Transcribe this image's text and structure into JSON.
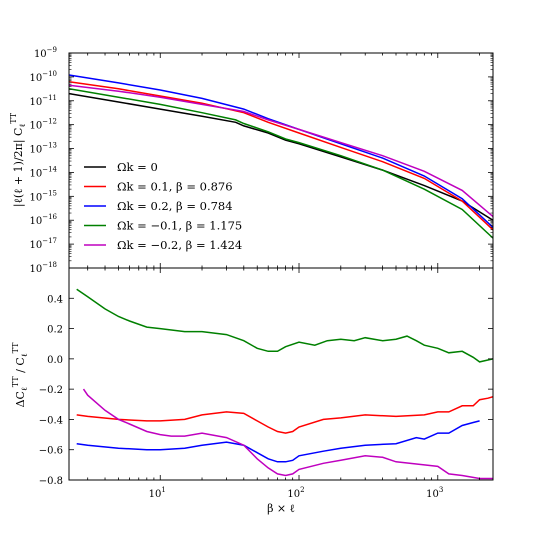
{
  "chart_data": [
    {
      "type": "line",
      "title": "",
      "xlabel": "",
      "ylabel": "|ℓ(ℓ + 1)/2π| C",
      "ylabel_sub": "ℓ",
      "ylabel_sup": "TT",
      "xscale": "log",
      "yscale": "log",
      "xlim": [
        2.2,
        2500
      ],
      "ylim_exp": [
        -18,
        -9
      ],
      "y_tick_exponents": [
        -18,
        -17,
        -16,
        -15,
        -14,
        -13,
        -12,
        -11,
        -10,
        -9
      ],
      "y_tick_base": "10",
      "legend_position": "lower-left",
      "series": [
        {
          "name": "Ωk = 0",
          "color": "#000000",
          "x": [
            2.2,
            5,
            10,
            20,
            35,
            40,
            60,
            80,
            100,
            200,
            400,
            800,
            1500,
            2500
          ],
          "log10y": [
            -10.7,
            -11.05,
            -11.35,
            -11.65,
            -11.9,
            -12.05,
            -12.35,
            -12.65,
            -12.8,
            -13.35,
            -13.9,
            -14.55,
            -15.2,
            -16.0
          ]
        },
        {
          "name": "Ωk = 0.1, β = 0.876",
          "color": "#ff0000",
          "x": [
            2.2,
            5,
            10,
            20,
            40,
            60,
            100,
            200,
            400,
            800,
            1500,
            2500
          ],
          "log10y": [
            -10.2,
            -10.5,
            -10.8,
            -11.1,
            -11.5,
            -11.9,
            -12.35,
            -12.95,
            -13.55,
            -14.25,
            -15.2,
            -16.4
          ]
        },
        {
          "name": "Ωk = 0.2, β = 0.784",
          "color": "#0000ff",
          "x": [
            2.2,
            5,
            10,
            20,
            40,
            60,
            100,
            200,
            400,
            800,
            1500,
            2500
          ],
          "log10y": [
            -9.92,
            -10.25,
            -10.55,
            -10.9,
            -11.35,
            -11.75,
            -12.2,
            -12.8,
            -13.4,
            -14.15,
            -15.1,
            -16.3
          ]
        },
        {
          "name": "Ωk = −0.1, β = 1.175",
          "color": "#008000",
          "x": [
            2.2,
            5,
            10,
            20,
            35,
            40,
            60,
            80,
            100,
            200,
            400,
            800,
            1500,
            2500
          ],
          "log10y": [
            -10.5,
            -10.85,
            -11.15,
            -11.5,
            -11.8,
            -11.95,
            -12.3,
            -12.6,
            -12.75,
            -13.3,
            -13.9,
            -14.7,
            -15.55,
            -16.75
          ]
        },
        {
          "name": "Ωk = −0.2, β = 1.424",
          "color": "#bf00bf",
          "x": [
            2.2,
            5,
            10,
            20,
            40,
            60,
            100,
            200,
            400,
            800,
            1500,
            2500
          ],
          "log10y": [
            -10.35,
            -10.6,
            -10.85,
            -11.15,
            -11.45,
            -11.8,
            -12.2,
            -12.75,
            -13.3,
            -13.95,
            -14.75,
            -15.85
          ]
        }
      ]
    },
    {
      "type": "line",
      "title": "",
      "xlabel": "β × ℓ",
      "ylabel": "ΔC",
      "ylabel_sub": "ℓ",
      "ylabel_sup": "TT",
      "ylabel_den": "C",
      "xscale": "log",
      "xlim": [
        2.2,
        2500
      ],
      "ylim": [
        -0.8,
        0.6
      ],
      "y_ticks": [
        "−0.8",
        "−0.6",
        "−0.4",
        "−0.2",
        "0.0",
        "0.2",
        "0.4"
      ],
      "y_tick_values": [
        -0.8,
        -0.6,
        -0.4,
        -0.2,
        0.0,
        0.2,
        0.4
      ],
      "x_tick_labels": [
        "10",
        "10",
        "10"
      ],
      "x_tick_exponents": [
        "1",
        "2",
        "3"
      ],
      "x_tick_values": [
        10,
        100,
        1000
      ],
      "series": [
        {
          "color": "#008000",
          "x": [
            2.5,
            3,
            4,
            5,
            6,
            8,
            10,
            15,
            20,
            30,
            40,
            50,
            60,
            70,
            80,
            100,
            130,
            160,
            200,
            250,
            300,
            400,
            500,
            600,
            700,
            800,
            1000,
            1200,
            1500,
            1800,
            2000,
            2500
          ],
          "y": [
            0.46,
            0.41,
            0.33,
            0.28,
            0.25,
            0.21,
            0.2,
            0.18,
            0.18,
            0.16,
            0.12,
            0.07,
            0.05,
            0.05,
            0.08,
            0.11,
            0.09,
            0.12,
            0.13,
            0.12,
            0.14,
            0.12,
            0.13,
            0.15,
            0.12,
            0.09,
            0.07,
            0.04,
            0.05,
            0.01,
            -0.02,
            0.0
          ]
        },
        {
          "color": "#ff0000",
          "x": [
            2.5,
            3,
            5,
            8,
            10,
            15,
            20,
            30,
            40,
            50,
            60,
            70,
            80,
            90,
            100,
            150,
            200,
            300,
            500,
            800,
            1000,
            1200,
            1500,
            1800,
            2000,
            2300,
            2500
          ],
          "y": [
            -0.37,
            -0.38,
            -0.4,
            -0.41,
            -0.41,
            -0.4,
            -0.37,
            -0.35,
            -0.36,
            -0.41,
            -0.45,
            -0.48,
            -0.49,
            -0.48,
            -0.45,
            -0.4,
            -0.39,
            -0.37,
            -0.38,
            -0.37,
            -0.35,
            -0.35,
            -0.31,
            -0.31,
            -0.27,
            -0.26,
            -0.25
          ]
        },
        {
          "color": "#0000ff",
          "x": [
            2.5,
            3,
            5,
            8,
            10,
            15,
            20,
            30,
            40,
            50,
            60,
            70,
            80,
            90,
            100,
            150,
            200,
            300,
            500,
            700,
            800,
            1000,
            1200,
            1500,
            1800,
            2000
          ],
          "y": [
            -0.56,
            -0.57,
            -0.59,
            -0.6,
            -0.6,
            -0.59,
            -0.57,
            -0.55,
            -0.57,
            -0.62,
            -0.66,
            -0.68,
            -0.68,
            -0.67,
            -0.64,
            -0.61,
            -0.59,
            -0.57,
            -0.56,
            -0.52,
            -0.53,
            -0.49,
            -0.49,
            -0.44,
            -0.42,
            -0.41
          ]
        },
        {
          "color": "#bf00bf",
          "x": [
            2.8,
            3,
            4,
            5,
            6,
            8,
            10,
            12,
            15,
            20,
            30,
            40,
            50,
            60,
            70,
            80,
            90,
            100,
            150,
            200,
            300,
            400,
            500,
            800,
            1000,
            1200,
            1500,
            2000,
            2500
          ],
          "y": [
            -0.2,
            -0.24,
            -0.34,
            -0.4,
            -0.43,
            -0.48,
            -0.5,
            -0.51,
            -0.51,
            -0.49,
            -0.52,
            -0.57,
            -0.66,
            -0.72,
            -0.76,
            -0.77,
            -0.76,
            -0.73,
            -0.69,
            -0.67,
            -0.64,
            -0.65,
            -0.68,
            -0.7,
            -0.71,
            -0.76,
            -0.77,
            -0.79,
            -0.79
          ]
        }
      ]
    }
  ]
}
